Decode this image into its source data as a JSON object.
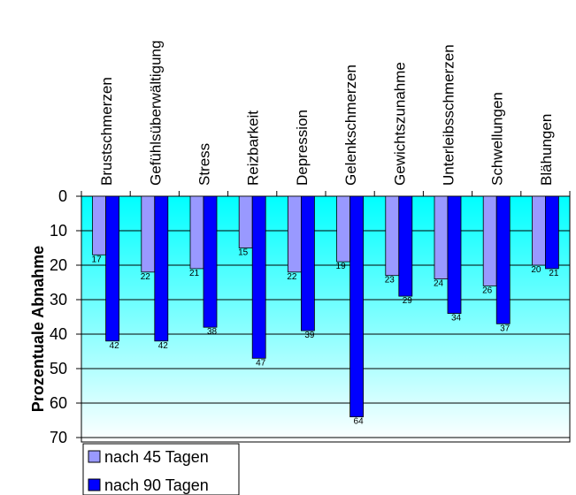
{
  "chart_data": {
    "type": "bar",
    "ylabel": "Prozentuale Abnahme",
    "xlabel": "",
    "ylim": [
      0,
      70
    ],
    "yticks": [
      0,
      10,
      20,
      30,
      40,
      50,
      60,
      70
    ],
    "y_axis_inverted": true,
    "grid": true,
    "legend_position": "bottom-left",
    "categories": [
      "Brustschmerzen",
      "Gefühlsüberwältigung",
      "Stress",
      "Reizbarkeit",
      "Depression",
      "Gelenkschmerzen",
      "Gewichtszunahme",
      "Unterleibsschmerzen",
      "Schwellungen",
      "Blähungen"
    ],
    "series": [
      {
        "name": "nach 45 Tagen",
        "values": [
          17,
          22,
          21,
          15,
          22,
          19,
          23,
          24,
          26,
          20
        ],
        "color": "#9999ff"
      },
      {
        "name": "nach 90 Tagen",
        "values": [
          42,
          42,
          38,
          47,
          39,
          64,
          29,
          34,
          37,
          21
        ],
        "color": "#0000ff"
      }
    ],
    "background_gradient": [
      "#00ffff",
      "#ffffff"
    ]
  }
}
